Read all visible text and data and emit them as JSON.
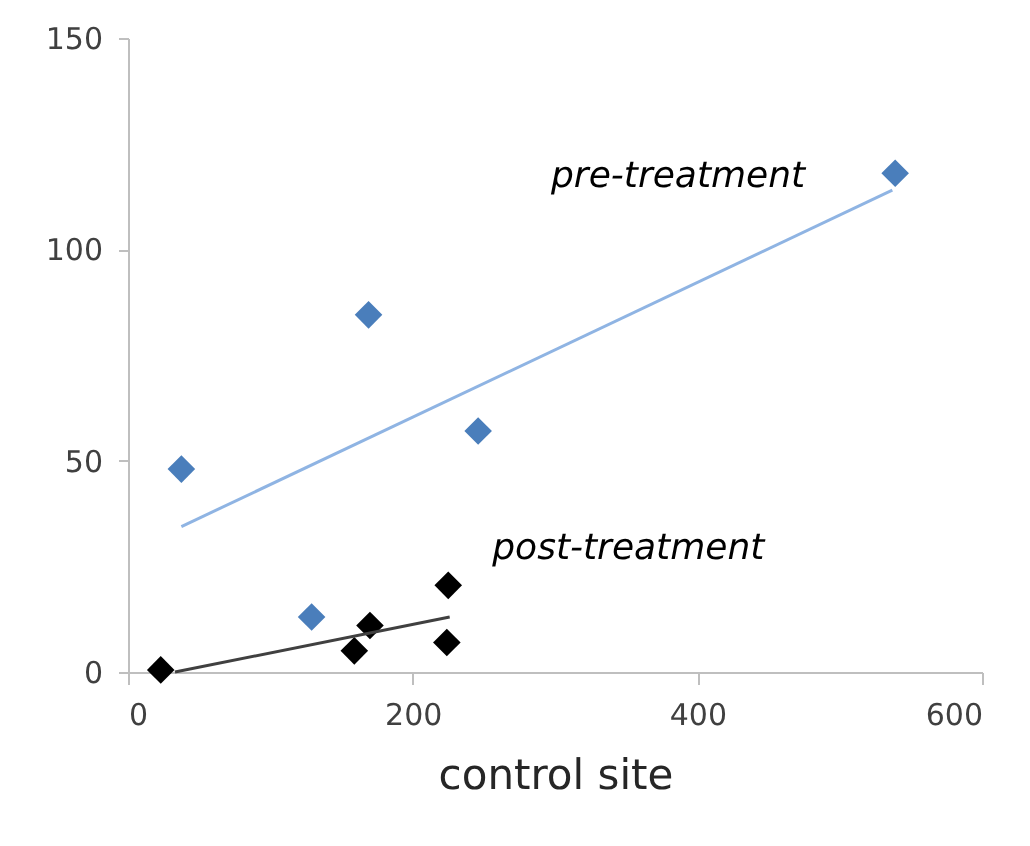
{
  "chart_data": {
    "type": "scatter",
    "xlabel": "control site",
    "xlim": [
      0,
      600
    ],
    "ylim": [
      0,
      150
    ],
    "xticks": [
      0,
      200,
      400,
      600
    ],
    "yticks": [
      0,
      50,
      100,
      150
    ],
    "grid": false,
    "marker": "diamond",
    "series": [
      {
        "name": "pre-treatment",
        "color": "#4a7ebb",
        "x": [
          37.5,
          129,
          169,
          246,
          539
        ],
        "values": [
          48,
          13,
          84.5,
          57,
          118
        ]
      },
      {
        "name": "post-treatment",
        "color": "#000000",
        "x": [
          23,
          159,
          170,
          224,
          225
        ],
        "values": [
          0.5,
          5,
          11,
          7,
          20.5
        ]
      },
      {
        "type": "line",
        "color": "#8fb4e3",
        "marker": "none",
        "line_style": "solid",
        "x": [
          37.5,
          537
        ],
        "values": [
          34.4,
          114
        ]
      },
      {
        "type": "line",
        "color": "#404040",
        "marker": "none",
        "line_style": "solid",
        "x": [
          33,
          226
        ],
        "values": [
          0,
          13
        ]
      }
    ]
  }
}
